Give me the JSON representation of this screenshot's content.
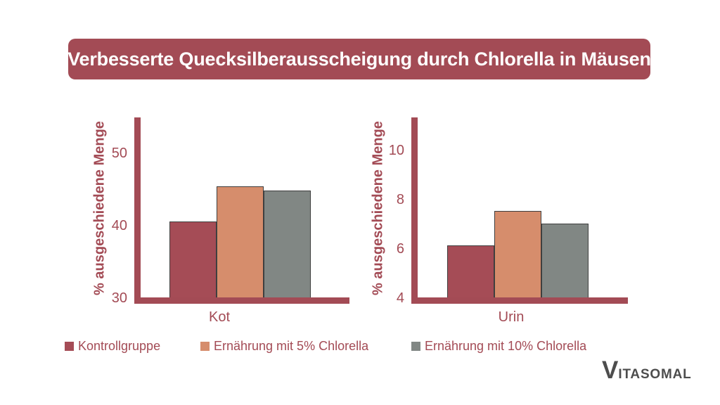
{
  "title": "Verbesserte Quecksilberausscheigung durch Chlorella in Mäusen",
  "colors": {
    "accent": "#a34b55",
    "banner_bg": "#a34b55",
    "banner_text": "#ffffff",
    "bar_border": "#3f3f3f",
    "logo": "#4d4d4d"
  },
  "chart_data": [
    {
      "type": "bar",
      "title": "Kot",
      "xlabel": "Kot",
      "ylabel": "% ausgeschiedene Menge",
      "categories": [
        "Kontrollgruppe",
        "Ernährung mit 5% Chlorella",
        "Ernährung mit 10% Chlorella"
      ],
      "values": [
        40.5,
        45.3,
        44.7
      ],
      "yticks": [
        30,
        40,
        50
      ],
      "ylim": [
        30,
        54.8
      ],
      "grid": false,
      "legend_position": "bottom"
    },
    {
      "type": "bar",
      "title": "Urin",
      "xlabel": "Urin",
      "ylabel": "% ausgeschiedene Menge",
      "categories": [
        "Kontrollgruppe",
        "Ernährung mit 5% Chlorella",
        "Ernährung mit 10% Chlorella"
      ],
      "values": [
        6.1,
        7.5,
        7.0
      ],
      "yticks": [
        4,
        6,
        8,
        10
      ],
      "ylim": [
        4,
        11.3
      ],
      "grid": false,
      "legend_position": "bottom"
    }
  ],
  "legend": {
    "items": [
      {
        "label": "Kontrollgruppe",
        "color": "#a54c56"
      },
      {
        "label": "Ernährung mit 5% Chlorella",
        "color": "#d68d6c"
      },
      {
        "label": "Ernährung mit 10% Chlorella",
        "color": "#818784"
      }
    ]
  },
  "logo": {
    "text": "Vitasomal",
    "initial": "V",
    "rest": "ITASOMAL"
  }
}
